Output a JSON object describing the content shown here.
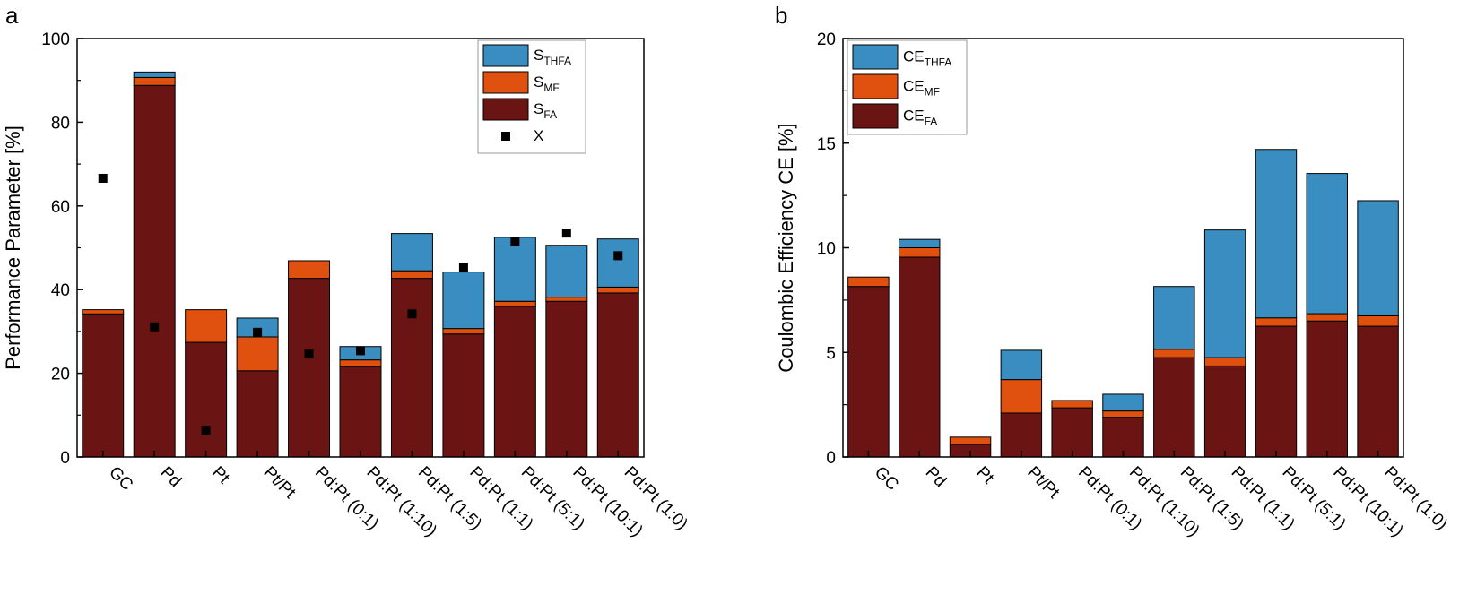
{
  "chart_data": [
    {
      "type": "bar",
      "stacked": true,
      "panel_label": "a",
      "ylabel": "Performance Parameter  [%]",
      "ylim": [
        0,
        100
      ],
      "yticks": [
        0,
        20,
        40,
        60,
        80,
        100
      ],
      "categories": [
        "GC",
        "Pd",
        "Pt",
        "Pt/Pt",
        "Pd:Pt (0:1)",
        "Pd:Pt (1:10)",
        "Pd:Pt (1:5)",
        "Pd:Pt (1:1)",
        "Pd:Pt (5:1)",
        "Pd:Pt (10:1)",
        "Pd:Pt (1:0)"
      ],
      "legend_position": "top-right",
      "series": [
        {
          "name": "S",
          "sub": "FA",
          "color": "#6b1414",
          "values": [
            34.2,
            88.8,
            27.4,
            20.6,
            42.7,
            21.6,
            42.7,
            29.4,
            36.0,
            37.2,
            39.2
          ]
        },
        {
          "name": "S",
          "sub": "MF",
          "color": "#e0500e",
          "values": [
            1.0,
            1.9,
            7.8,
            8.1,
            4.2,
            1.6,
            1.8,
            1.3,
            1.2,
            1.0,
            1.4
          ]
        },
        {
          "name": "S",
          "sub": "THFA",
          "color": "#3a8dc1",
          "values": [
            0,
            1.3,
            0,
            4.5,
            0,
            3.2,
            8.9,
            13.5,
            15.3,
            12.4,
            11.5
          ]
        }
      ],
      "scatter": {
        "name": "X",
        "values": [
          66.6,
          31.1,
          6.4,
          29.8,
          24.6,
          25.4,
          34.2,
          45.3,
          51.5,
          53.5,
          48.1
        ]
      }
    },
    {
      "type": "bar",
      "stacked": true,
      "panel_label": "b",
      "ylabel": "Coulombic Efficiency CE  [%]",
      "ylim": [
        0,
        20
      ],
      "yticks": [
        0,
        5,
        10,
        15,
        20
      ],
      "categories": [
        "GC",
        "Pd",
        "Pt",
        "Pt/Pt",
        "Pd:Pt (0:1)",
        "Pd:Pt (1:10)",
        "Pd:Pt (1:5)",
        "Pd:Pt (1:1)",
        "Pd:Pt (5:1)",
        "Pd:Pt (10:1)",
        "Pd:Pt (1:0)"
      ],
      "legend_position": "top-left",
      "series": [
        {
          "name": "CE",
          "sub": "FA",
          "color": "#6b1414",
          "values": [
            8.15,
            9.55,
            0.6,
            2.1,
            2.35,
            1.9,
            4.75,
            4.35,
            6.25,
            6.5,
            6.25
          ]
        },
        {
          "name": "CE",
          "sub": "MF",
          "color": "#e0500e",
          "values": [
            0.45,
            0.45,
            0.35,
            1.6,
            0.35,
            0.3,
            0.4,
            0.4,
            0.4,
            0.35,
            0.5
          ]
        },
        {
          "name": "CE",
          "sub": "THFA",
          "color": "#3a8dc1",
          "values": [
            0,
            0.4,
            0,
            1.4,
            0,
            0.8,
            3.0,
            6.1,
            8.05,
            6.7,
            5.5
          ]
        }
      ]
    }
  ]
}
